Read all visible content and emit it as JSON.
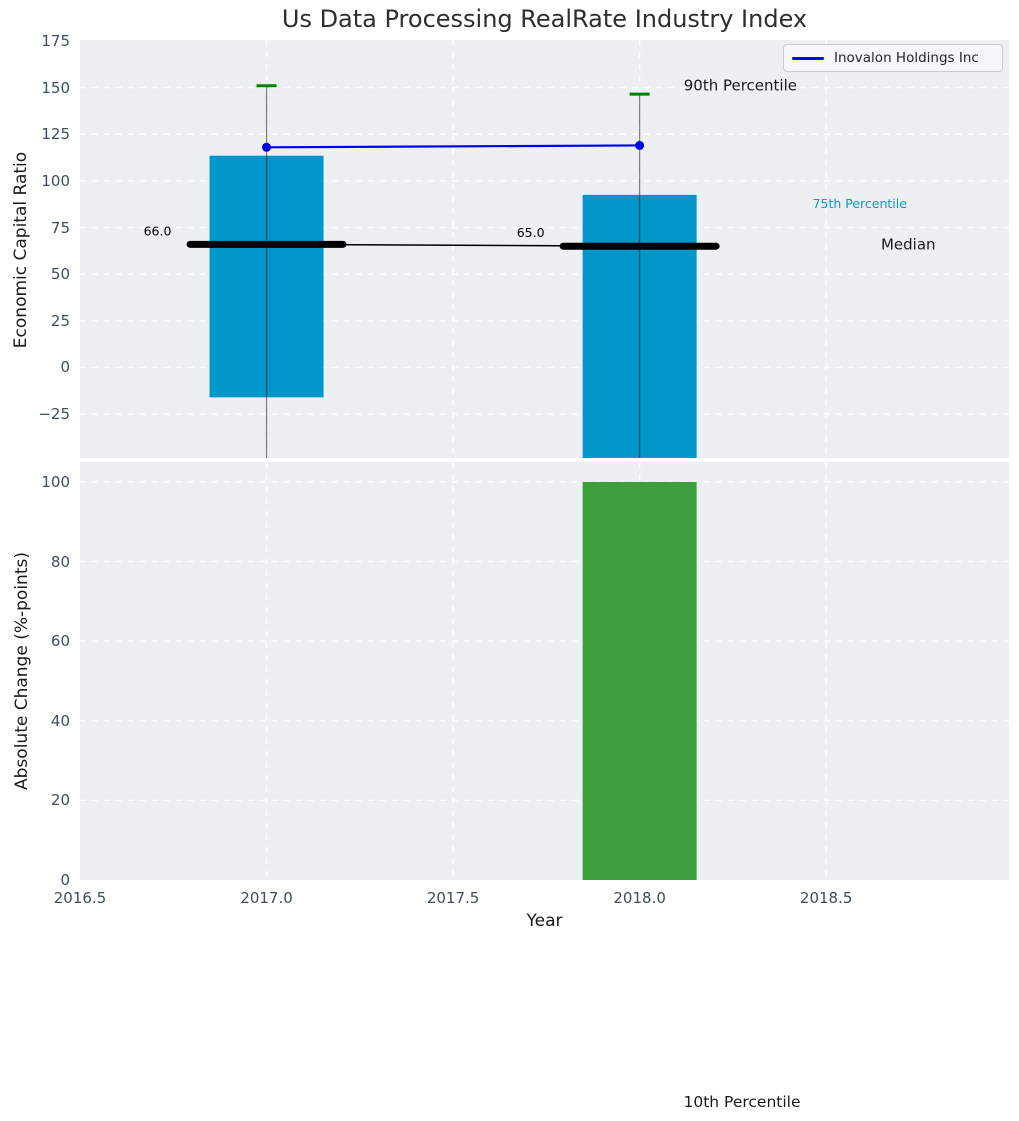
{
  "title": "Us Data Processing RealRate Industry Index",
  "legend": {
    "label": "Inovalon Holdings Inc",
    "line_color": "#0000ee"
  },
  "colors": {
    "plot_bg": "#edf0f2",
    "grid": "#ffffff",
    "bar_top_chart": "#0096ca",
    "bar_bottom_chart": "#3d9e3d",
    "whisker": "rgba(0,0,0,0.5)",
    "whisker_cap": "#008000",
    "median": "#000000",
    "company_line": "#0000ee",
    "tick_label": "#3d4d63",
    "annotation_75th": "#0d9bc8",
    "annotation_dark": "#1a1a1a"
  },
  "chart_data": [
    {
      "type": "bar",
      "name": "economic-capital-ratio",
      "ylabel": "Economic Capital Ratio",
      "xlim": [
        2016.5,
        2018.99
      ],
      "ylim": [
        -48.5,
        175.5
      ],
      "xticks": [
        2016.5,
        2017.0,
        2017.5,
        2018.0,
        2018.5
      ],
      "yticks": [
        175,
        150,
        125,
        100,
        75,
        50,
        25,
        0,
        -25
      ],
      "grid": true,
      "legend_position": "upper right",
      "categories": [
        2017,
        2018
      ],
      "series": [
        {
          "name": "Inovalon Holdings Inc",
          "type": "line",
          "values": [
            118,
            119
          ]
        },
        {
          "name": "25th-75th Percentile band",
          "type": "bar",
          "top_values": [
            113.5,
            92.5
          ],
          "bottom_values": [
            -16,
            null
          ]
        },
        {
          "name": "Median",
          "type": "thick-line",
          "values": [
            66,
            65
          ],
          "point_labels": [
            "66.0",
            "65.0"
          ]
        },
        {
          "name": "90th Percentile",
          "type": "whisker",
          "values": [
            151,
            146.5
          ]
        }
      ],
      "side_labels": [
        {
          "text": "90th Percentile",
          "x": 2018.27,
          "y": 151,
          "color": "#1a1a1a",
          "size": 15
        },
        {
          "text": "75th Percentile",
          "x": 2018.59,
          "y": 88,
          "color": "#0d9bc8",
          "size": 12.5
        },
        {
          "text": "Median",
          "x": 2018.72,
          "y": 66,
          "color": "#1a1a1a",
          "size": 15
        }
      ]
    },
    {
      "type": "bar",
      "name": "absolute-change",
      "xlabel": "Year",
      "ylabel": "Absolute Change (%-points)",
      "xlim": [
        2016.5,
        2018.99
      ],
      "ylim": [
        0,
        105
      ],
      "xticks": [
        2016.5,
        2017.0,
        2017.5,
        2018.0,
        2018.5
      ],
      "yticks": [
        100,
        80,
        60,
        40,
        20,
        0
      ],
      "grid": true,
      "categories": [
        2018
      ],
      "values": [
        100
      ]
    }
  ],
  "below_figure_label": {
    "text": "10th Percentile"
  }
}
